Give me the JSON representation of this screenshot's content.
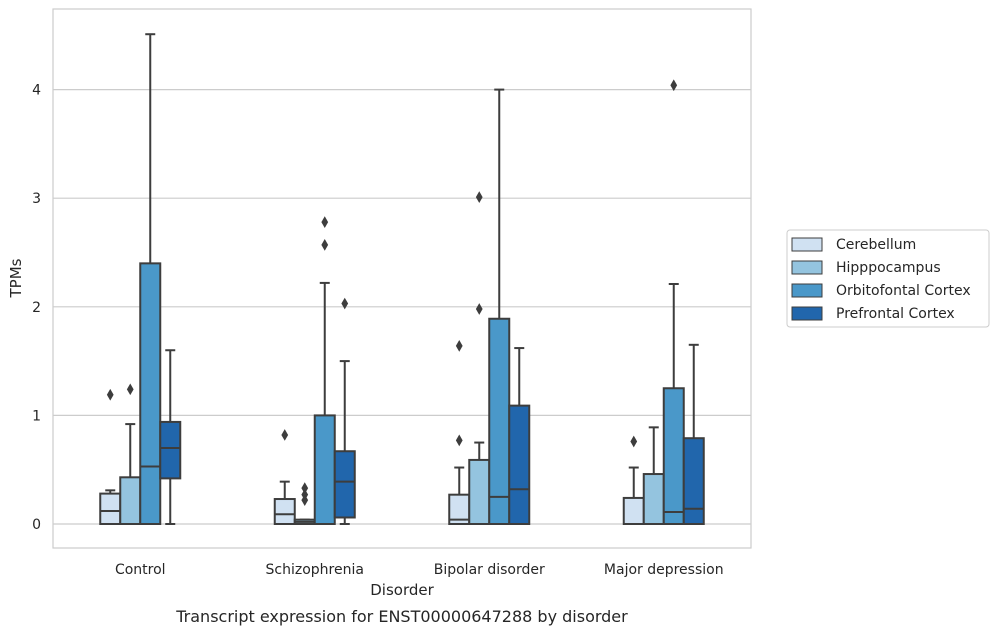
{
  "chart_data": {
    "type": "box",
    "title": "",
    "caption": "Transcript expression for ENST00000647288 by disorder",
    "xlabel": "Disorder",
    "ylabel": "TPMs",
    "ylim": [
      -0.22,
      4.75
    ],
    "yticks": [
      0,
      1,
      2,
      3,
      4
    ],
    "grid": "horizontal",
    "legend_position": "right",
    "categories": [
      "Control",
      "Schizophrenia",
      "Bipolar disorder",
      "Major depression"
    ],
    "series": [
      {
        "name": "Cerebellum",
        "color": "#d0e1f2",
        "boxes": [
          {
            "q1": 0.0,
            "median": 0.12,
            "q3": 0.28,
            "whisker_low": 0.0,
            "whisker_high": 0.31,
            "outliers": [
              1.19
            ]
          },
          {
            "q1": 0.0,
            "median": 0.09,
            "q3": 0.23,
            "whisker_low": 0.0,
            "whisker_high": 0.39,
            "outliers": [
              0.82
            ]
          },
          {
            "q1": 0.0,
            "median": 0.04,
            "q3": 0.27,
            "whisker_low": 0.0,
            "whisker_high": 0.52,
            "outliers": [
              0.77,
              1.64
            ]
          },
          {
            "q1": 0.0,
            "median": 0.0,
            "q3": 0.24,
            "whisker_low": 0.0,
            "whisker_high": 0.52,
            "outliers": [
              0.76
            ]
          }
        ]
      },
      {
        "name": "Hipppocampus",
        "color": "#94c4df",
        "boxes": [
          {
            "q1": 0.0,
            "median": 0.0,
            "q3": 0.43,
            "whisker_low": 0.0,
            "whisker_high": 0.92,
            "outliers": [
              1.24
            ]
          },
          {
            "q1": 0.0,
            "median": 0.02,
            "q3": 0.04,
            "whisker_low": 0.0,
            "whisker_high": 0.04,
            "outliers": [
              0.22,
              0.27,
              0.33
            ]
          },
          {
            "q1": 0.0,
            "median": 0.0,
            "q3": 0.59,
            "whisker_low": 0.0,
            "whisker_high": 0.75,
            "outliers": [
              1.98,
              3.01
            ]
          },
          {
            "q1": 0.0,
            "median": 0.0,
            "q3": 0.46,
            "whisker_low": 0.0,
            "whisker_high": 0.89,
            "outliers": []
          }
        ]
      },
      {
        "name": "Orbitofontal Cortex",
        "color": "#4a98c9",
        "boxes": [
          {
            "q1": 0.0,
            "median": 0.53,
            "q3": 2.4,
            "whisker_low": 0.0,
            "whisker_high": 4.51,
            "outliers": []
          },
          {
            "q1": 0.0,
            "median": 0.0,
            "q3": 1.0,
            "whisker_low": 0.0,
            "whisker_high": 2.22,
            "outliers": [
              2.57,
              2.78
            ]
          },
          {
            "q1": 0.0,
            "median": 0.25,
            "q3": 1.89,
            "whisker_low": 0.0,
            "whisker_high": 4.0,
            "outliers": []
          },
          {
            "q1": 0.0,
            "median": 0.11,
            "q3": 1.25,
            "whisker_low": 0.0,
            "whisker_high": 2.21,
            "outliers": [
              4.04
            ]
          }
        ]
      },
      {
        "name": "Prefrontal Cortex",
        "color": "#2166ac",
        "boxes": [
          {
            "q1": 0.42,
            "median": 0.7,
            "q3": 0.94,
            "whisker_low": 0.0,
            "whisker_high": 1.6,
            "outliers": []
          },
          {
            "q1": 0.06,
            "median": 0.39,
            "q3": 0.67,
            "whisker_low": 0.0,
            "whisker_high": 1.5,
            "outliers": [
              2.03
            ]
          },
          {
            "q1": 0.0,
            "median": 0.32,
            "q3": 1.09,
            "whisker_low": 0.0,
            "whisker_high": 1.62,
            "outliers": []
          },
          {
            "q1": 0.0,
            "median": 0.14,
            "q3": 0.79,
            "whisker_low": 0.0,
            "whisker_high": 1.65,
            "outliers": []
          }
        ]
      }
    ]
  }
}
